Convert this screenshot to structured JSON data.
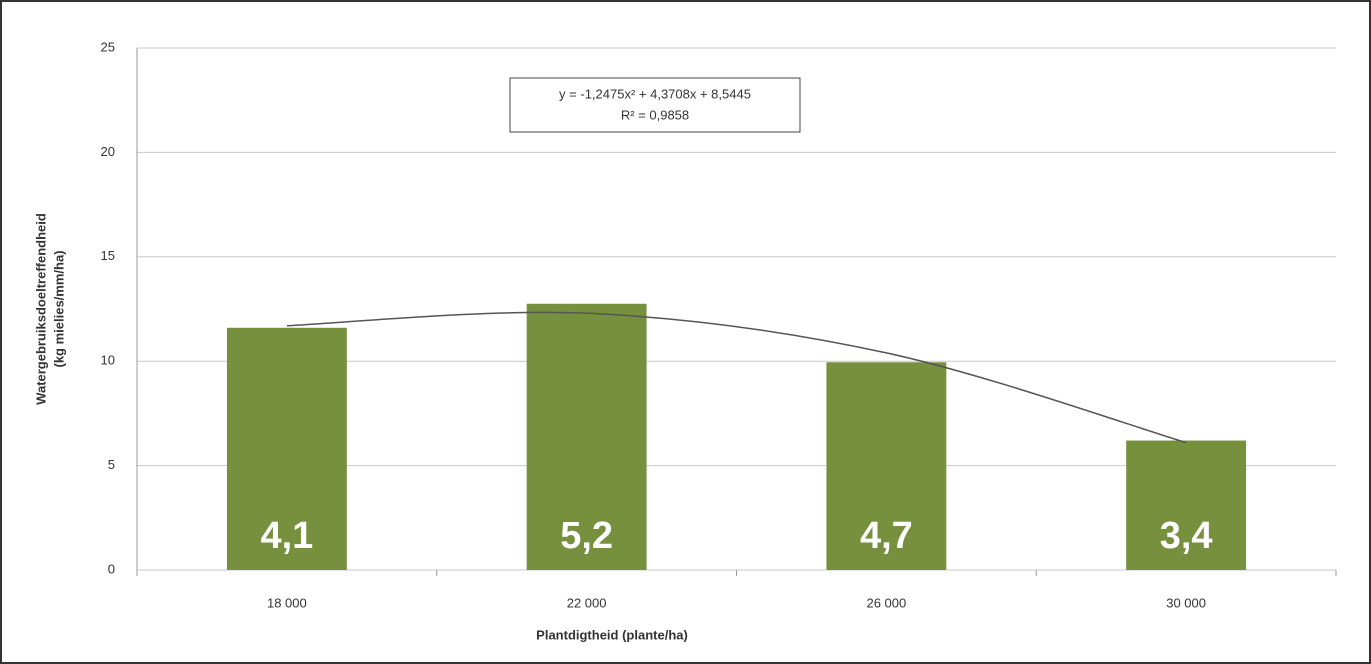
{
  "chart_data": {
    "type": "bar",
    "y_label": [
      "Watergebruiksdoeltreffendheid",
      "(kg mielies/mm/ha)"
    ],
    "x_label": "Plantdigtheid (plante/ha)",
    "categories": [
      "18 000",
      "22 000",
      "26 000",
      "30 000"
    ],
    "values": [
      11.6,
      12.75,
      9.95,
      6.2
    ],
    "annotations": [
      "4,1",
      "5,2",
      "4,7",
      "3,4"
    ],
    "color": "#76903d",
    "ylim": [
      0,
      25
    ],
    "yticks": [
      0,
      5,
      10,
      15,
      20,
      25
    ],
    "grid": true,
    "trendline": {
      "equation": "y = -1,2475x² + 4,3708x + 8,5445",
      "r_squared": "R² = 0,9858",
      "color": "#555555",
      "values": [
        11.7,
        12.3,
        10.4,
        6.1
      ]
    }
  }
}
